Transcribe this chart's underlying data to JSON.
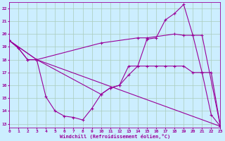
{
  "title": "",
  "xlabel": "Windchill (Refroidissement éolien,°C)",
  "bg_color": "#cceeff",
  "line_color": "#990099",
  "grid_color": "#aaccbb",
  "xmin": 0,
  "xmax": 23,
  "ymin": 12.7,
  "ymax": 22.5,
  "yticks": [
    13,
    14,
    15,
    16,
    17,
    18,
    19,
    20,
    21,
    22
  ],
  "line1_x": [
    0,
    1,
    2,
    3,
    4,
    5,
    6,
    7,
    8,
    9,
    10,
    11,
    12,
    13,
    14,
    15,
    16,
    17,
    18,
    19,
    20,
    21,
    22,
    23
  ],
  "line1_y": [
    19.5,
    18.9,
    18.0,
    18.0,
    15.1,
    14.0,
    13.6,
    13.5,
    13.3,
    14.2,
    15.3,
    15.8,
    16.0,
    16.8,
    17.5,
    19.6,
    19.7,
    21.1,
    21.6,
    22.3,
    19.9,
    17.0,
    13.7,
    12.8
  ],
  "line2_x": [
    0,
    1,
    2,
    3,
    10,
    11,
    12,
    13,
    14,
    15,
    16,
    17,
    18,
    19,
    20,
    21,
    22,
    23
  ],
  "line2_y": [
    19.5,
    18.9,
    18.0,
    18.0,
    15.3,
    15.8,
    16.0,
    17.5,
    17.5,
    17.5,
    17.5,
    17.5,
    17.5,
    17.5,
    17.0,
    17.0,
    17.0,
    12.8
  ],
  "line3_x": [
    0,
    3,
    23
  ],
  "line3_y": [
    19.5,
    18.0,
    12.8
  ],
  "line4_x": [
    0,
    3,
    10,
    14,
    15,
    18,
    19,
    20,
    21,
    23
  ],
  "line4_y": [
    19.5,
    18.0,
    19.3,
    19.7,
    19.7,
    20.0,
    19.9,
    19.9,
    19.9,
    12.8
  ]
}
